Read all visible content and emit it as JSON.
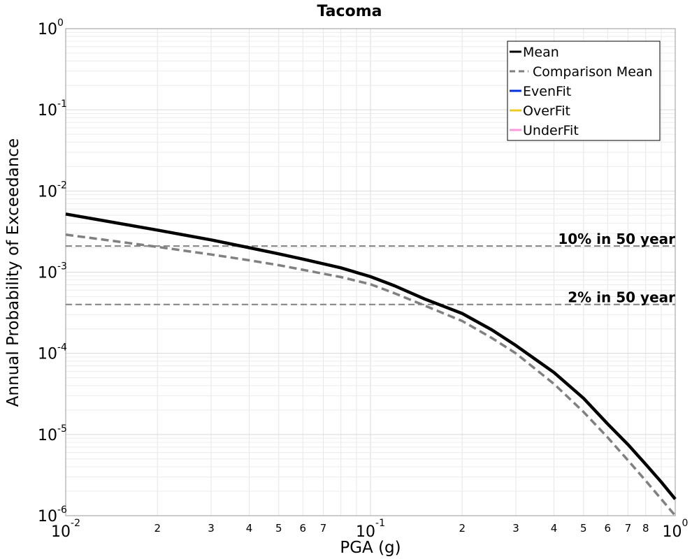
{
  "chart_data": {
    "type": "line",
    "title": "Tacoma",
    "xlabel": "PGA (g)",
    "ylabel": "Annual Probability of Exceedance",
    "x_scale": "log",
    "y_scale": "log",
    "xlim": [
      0.01,
      1
    ],
    "ylim": [
      1e-06,
      1
    ],
    "grid": true,
    "legend_position": "top-right",
    "x_major_ticks": [
      {
        "value": 0.01,
        "base": "10",
        "exp": "-2"
      },
      {
        "value": 0.1,
        "base": "10",
        "exp": "-1"
      },
      {
        "value": 1,
        "base": "10",
        "exp": "0"
      }
    ],
    "x_minor_ticks": [
      {
        "value": 0.02,
        "label": "2"
      },
      {
        "value": 0.03,
        "label": "3"
      },
      {
        "value": 0.04,
        "label": "4"
      },
      {
        "value": 0.05,
        "label": "5"
      },
      {
        "value": 0.06,
        "label": "6"
      },
      {
        "value": 0.07,
        "label": "7"
      },
      {
        "value": 0.2,
        "label": "2"
      },
      {
        "value": 0.3,
        "label": "3"
      },
      {
        "value": 0.4,
        "label": "4"
      },
      {
        "value": 0.5,
        "label": "5"
      },
      {
        "value": 0.6,
        "label": "6"
      },
      {
        "value": 0.7,
        "label": "7"
      },
      {
        "value": 0.8,
        "label": "8"
      }
    ],
    "y_major_ticks": [
      {
        "value": 1,
        "base": "10",
        "exp": "0"
      },
      {
        "value": 0.1,
        "base": "10",
        "exp": "-1"
      },
      {
        "value": 0.01,
        "base": "10",
        "exp": "-2"
      },
      {
        "value": 0.001,
        "base": "10",
        "exp": "-3"
      },
      {
        "value": 0.0001,
        "base": "10",
        "exp": "-4"
      },
      {
        "value": 1e-05,
        "base": "10",
        "exp": "-5"
      },
      {
        "value": 1e-06,
        "base": "10",
        "exp": "-6"
      }
    ],
    "series": [
      {
        "name": "Mean",
        "color": "#000000",
        "dash": "solid",
        "x": [
          0.01,
          0.02,
          0.03,
          0.04,
          0.05,
          0.06,
          0.08,
          0.1,
          0.12,
          0.15,
          0.2,
          0.25,
          0.3,
          0.4,
          0.5,
          0.6,
          0.7,
          0.8,
          0.9,
          1.0
        ],
        "y": [
          0.0052,
          0.0033,
          0.0025,
          0.002,
          0.00168,
          0.00145,
          0.00113,
          0.00088,
          0.00068,
          0.00047,
          0.00031,
          0.000195,
          0.000125,
          5.8e-05,
          2.8e-05,
          1.35e-05,
          7.5e-06,
          4.3e-06,
          2.6e-06,
          1.6e-06
        ]
      },
      {
        "name": "Comparison Mean",
        "color": "#808080",
        "dash": "dashed",
        "x": [
          0.01,
          0.02,
          0.03,
          0.04,
          0.05,
          0.06,
          0.08,
          0.1,
          0.12,
          0.15,
          0.2,
          0.25,
          0.3,
          0.4,
          0.5,
          0.6,
          0.7,
          0.8,
          0.9,
          1.0
        ],
        "y": [
          0.0029,
          0.00205,
          0.00165,
          0.0014,
          0.00122,
          0.00107,
          0.00087,
          0.00071,
          0.00055,
          0.00039,
          0.00025,
          0.000155,
          0.0001,
          4.2e-05,
          1.9e-05,
          9.2e-06,
          4.8e-06,
          2.7e-06,
          1.6e-06,
          1e-06
        ]
      }
    ],
    "legend": [
      {
        "name": "Mean",
        "color": "#000000",
        "dash": "solid"
      },
      {
        "name": "Comparison Mean",
        "color": "#808080",
        "dash": "dashed"
      },
      {
        "name": "EvenFit",
        "color": "#0033dd",
        "dash": "solid"
      },
      {
        "name": "OverFit",
        "color": "#eecc22",
        "dash": "solid"
      },
      {
        "name": "UnderFit",
        "color": "#ff99dd",
        "dash": "solid"
      }
    ],
    "reference_lines": [
      {
        "label": "10% in 50 year",
        "y": 0.0021,
        "color": "#808080"
      },
      {
        "label": "2% in 50 year",
        "y": 0.0004,
        "color": "#808080"
      }
    ]
  }
}
